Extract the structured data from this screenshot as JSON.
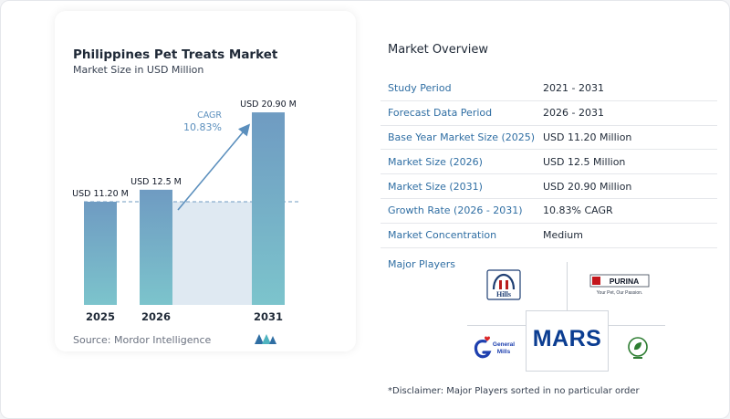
{
  "chart_data": {
    "type": "bar",
    "title": "Philippines Pet Treats Market",
    "subtitle": "Market Size in USD Million",
    "categories": [
      "2025",
      "2026",
      "2031"
    ],
    "values": [
      11.2,
      12.5,
      20.9
    ],
    "data_labels": [
      "USD 11.20 M",
      "USD 12.5 M",
      "USD 20.90 M"
    ],
    "ylim": [
      0,
      22
    ],
    "cagr_label": "CAGR",
    "cagr_value": "10.83%",
    "grid": false,
    "colors": {
      "bar_top": "#6f9bc2",
      "bar_bottom": "#7cc4cc",
      "area": "#dfe9f2",
      "arrow": "#5b8fbd",
      "cagr_text": "#5b8fbd"
    }
  },
  "source": "Source:  Mordor Intelligence",
  "overview": {
    "title": "Market Overview",
    "rows": [
      {
        "key": "Study Period",
        "value": "2021 - 2031"
      },
      {
        "key": "Forecast Data Period",
        "value": "2026 - 2031"
      },
      {
        "key": "Base Year Market Size (2025)",
        "value": "USD 11.20 Million"
      },
      {
        "key": "Market Size (2026)",
        "value": "USD 12.5 Million"
      },
      {
        "key": "Market Size (2031)",
        "value": "USD 20.90 Million"
      },
      {
        "key": "Growth Rate (2026 - 2031)",
        "value": "10.83% CAGR"
      },
      {
        "key": "Market Concentration",
        "value": "Medium"
      }
    ]
  },
  "players": {
    "title": "Major Players",
    "logos": {
      "hills": "Hills",
      "purina": "PURINA",
      "purina_tagline": "Your Pet, Our Passion.",
      "mars": "MARS",
      "general_mills_line1": "General",
      "general_mills_line2": "Mills"
    }
  },
  "disclaimer": "*Disclaimer: Major Players sorted in no particular order"
}
